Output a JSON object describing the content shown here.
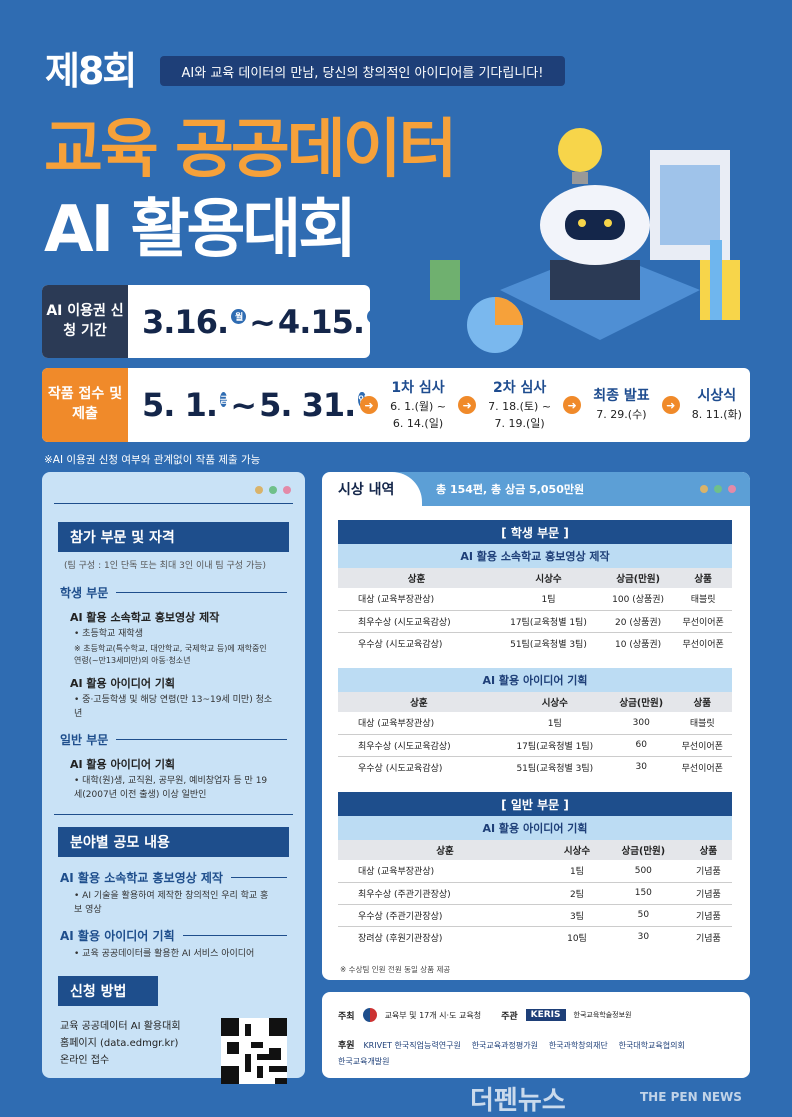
{
  "header": {
    "round": "제8회",
    "tagline": "AI와 교육 데이터의 만남, 당신의 창의적인 아이디어를 기다립니다!",
    "title_line1": "교육 공공데이터",
    "title_line2": "AI 활용대회"
  },
  "colors": {
    "background": "#2f6cb2",
    "accent_orange": "#f6a13a",
    "navy": "#1e4e8c"
  },
  "schedule": {
    "ai_period": {
      "label": "AI 이용권 신청 기간",
      "start": "3.16.",
      "start_day": "월",
      "sep": "~",
      "end": "4.15.",
      "end_day": "수"
    },
    "submission": {
      "label": "작품 접수 및 제출",
      "start": "5. 1.",
      "start_day": "금",
      "sep": "~",
      "end": "5. 31.",
      "end_day": "일"
    },
    "steps": [
      {
        "title": "1차 심사",
        "line1": "6. 1.(월) ~",
        "line2": "6. 14.(일)"
      },
      {
        "title": "2차 심사",
        "line1": "7. 18.(토) ~",
        "line2": "7. 19.(일)"
      },
      {
        "title": "최종 발표",
        "line1": "7. 29.(수)",
        "line2": ""
      },
      {
        "title": "시상식",
        "line1": "8. 11.(화)",
        "line2": ""
      }
    ],
    "note": "※AI 이용권 신청 여부와 관계없이 작품 제출 가능"
  },
  "left": {
    "eligibility": {
      "title": "참가 부문 및 자격",
      "team": "(팀 구성 : 1인 단독 또는 최대 3인 이내 팀 구성 가능)",
      "student": "학생 부문",
      "s_item1": "AI 활용 소속학교 홍보영상 제작",
      "s_item1_b1": "• 초등학교 재학생",
      "s_item1_b2": "※ 초등학교(특수학교, 대안학교, 국제학교 등)에 재학중인 연령(~만13세미만)의 아동·청소년",
      "s_item2": "AI 활용 아이디어 기획",
      "s_item2_b1": "• 중·고등학생 및 해당 연령(만 13~19세 미만) 청소년",
      "general": "일반 부문",
      "g_item1": "AI 활용 아이디어 기획",
      "g_item1_b1": "• 대학(원)생, 교직원, 공무원, 예비창업자 등 만 19세(2007년 이전 출생) 이상 일반인"
    },
    "fields": {
      "title": "분야별 공모 내용",
      "f1": "AI 활용 소속학교 홍보영상 제작",
      "f1_b": "• AI 기술을 활용하여 제작한 창의적인 우리 학교 홍보 영상",
      "f2": "AI 활용 아이디어 기획",
      "f2_b": "• 교육 공공데이터를 활용한 AI 서비스 아이디어"
    },
    "apply": {
      "title": "신청 방법",
      "line1": "교육 공공데이터 AI 활용대회",
      "line2": "홈페이지 (data.edmgr.kr)",
      "line3": "온라인 접수"
    }
  },
  "awards": {
    "title": "시상 내역",
    "summary": "총 154편, 총 상금 5,050만원",
    "headers": [
      "상훈",
      "시상수",
      "상금(만원)",
      "상품"
    ],
    "tables": [
      {
        "section": "[ 학생 부문 ]",
        "category": "AI 활용 소속학교 홍보영상 제작",
        "rows": [
          [
            "대상 (교육부장관상)",
            "1팀",
            "100 (상품권)",
            "태블릿"
          ],
          [
            "최우수상 (시도교육감상)",
            "17팀(교육청별 1팀)",
            "20 (상품권)",
            "무선이어폰"
          ],
          [
            "우수상 (시도교육감상)",
            "51팀(교육청별 3팀)",
            "10 (상품권)",
            "무선이어폰"
          ]
        ]
      },
      {
        "section": "",
        "category": "AI 활용 아이디어 기획",
        "rows": [
          [
            "대상 (교육부장관상)",
            "1팀",
            "300",
            "태블릿"
          ],
          [
            "최우수상 (시도교육감상)",
            "17팀(교육청별 1팀)",
            "60",
            "무선이어폰"
          ],
          [
            "우수상 (시도교육감상)",
            "51팀(교육청별 3팀)",
            "30",
            "무선이어폰"
          ]
        ]
      },
      {
        "section": "[ 일반 부문 ]",
        "category": "AI 활용 아이디어 기획",
        "rows": [
          [
            "대상 (교육부장관상)",
            "1팀",
            "500",
            "기념품"
          ],
          [
            "최우수상 (주관기관장상)",
            "2팀",
            "150",
            "기념품"
          ],
          [
            "우수상 (주관기관장상)",
            "3팀",
            "50",
            "기념품"
          ],
          [
            "장려상 (후원기관장상)",
            "10팀",
            "30",
            "기념품"
          ]
        ]
      }
    ],
    "footnote": "※ 수상팀 인원 전원 동일 상품 제공"
  },
  "footer": {
    "host_label": "주최",
    "host": "교육부 및 17개 시·도 교육청",
    "organizer_label": "주관",
    "organizer_logo": "KERIS",
    "organizer": "한국교육학술정보원",
    "sponsor_label": "후원",
    "sponsors": [
      "KRIVET 한국직업능력연구원",
      "한국교육과정평가원",
      "한국과학창의재단",
      "한국대학교육협의회",
      "한국교육개발원"
    ]
  },
  "watermark": {
    "ko": "더펜뉴스",
    "en": "THE PEN NEWS"
  }
}
